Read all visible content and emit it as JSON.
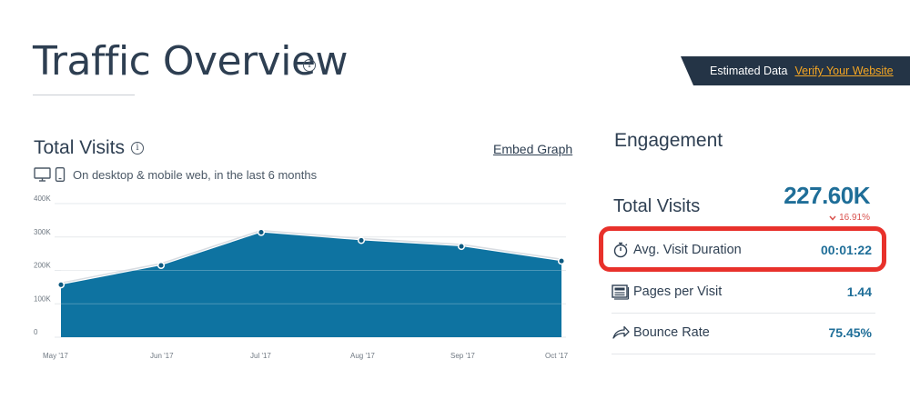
{
  "page": {
    "title": "Traffic Overview"
  },
  "banner": {
    "text": "Estimated Data",
    "link": "Verify Your Website"
  },
  "visits": {
    "title": "Total Visits",
    "embed_label": "Embed Graph",
    "subtitle": "On desktop & mobile web, in the last 6 months"
  },
  "chart_data": {
    "type": "area",
    "x": [
      "May '17",
      "Jun '17",
      "Jul '17",
      "Aug '17",
      "Sep '17",
      "Oct '17"
    ],
    "series": [
      {
        "values": [
          157000,
          215000,
          314000,
          290000,
          272000,
          228000
        ]
      }
    ],
    "y_ticks": [
      "0",
      "100K",
      "200K",
      "300K",
      "400K"
    ],
    "ylim": [
      0,
      400000
    ],
    "grid": true,
    "fill_color": "#0e73a1"
  },
  "engagement": {
    "title": "Engagement",
    "total_visits": {
      "label": "Total Visits",
      "value": "227.60K",
      "change": "16.91%",
      "change_direction": "down"
    },
    "metrics": [
      {
        "label": "Avg. Visit Duration",
        "value": "00:01:22",
        "icon": "stopwatch-icon",
        "highlighted": true
      },
      {
        "label": "Pages per Visit",
        "value": "1.44",
        "icon": "pages-icon"
      },
      {
        "label": "Bounce Rate",
        "value": "75.45%",
        "icon": "bounce-arrow-icon"
      }
    ]
  },
  "colors": {
    "accent": "#1f6e98",
    "banner_bg": "#243446",
    "link": "#f5a623",
    "highlight": "#e8312b",
    "negative": "#d9534f"
  }
}
